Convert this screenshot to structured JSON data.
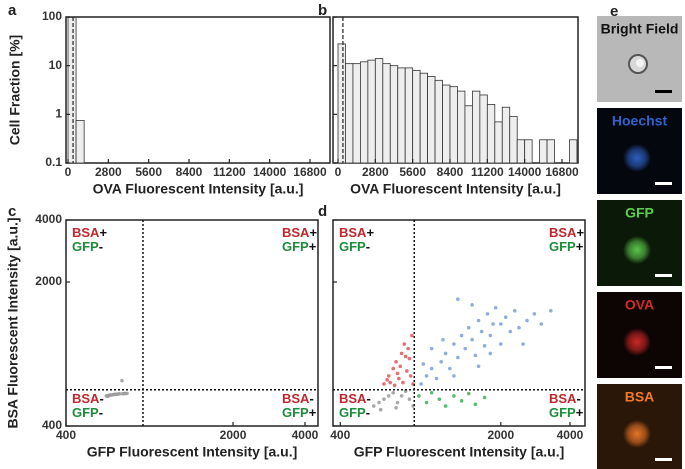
{
  "chart_data": [
    {
      "panel": "a",
      "type": "histogram",
      "xlabel": "OVA Fluorescent Intensity [a.u.]",
      "ylabel": "Cell Fraction [%]",
      "bins": [
        0,
        560,
        1120,
        1680,
        2240,
        2800,
        3360,
        3920,
        4480,
        5040,
        5600,
        6160,
        6720,
        7280,
        7840,
        8400,
        8960,
        9520,
        10080,
        10640,
        11200,
        11760,
        12320,
        12880,
        13440,
        14000,
        14560,
        15120,
        15680,
        16240,
        16800,
        17360,
        17920
      ],
      "values": [
        98,
        0.75,
        0,
        0,
        0,
        0,
        0,
        0,
        0,
        0,
        0,
        0,
        0,
        0,
        0,
        0,
        0,
        0,
        0,
        0,
        0,
        0,
        0,
        0,
        0,
        0,
        0,
        0,
        0,
        0,
        0,
        0
      ],
      "color": "#eeeeee",
      "threshold": 350,
      "ylog": true,
      "xlim": [
        -140,
        18190
      ],
      "xticks": [
        0,
        2800,
        5600,
        8400,
        11200,
        14000,
        16800
      ],
      "ylim": [
        0.1,
        100
      ],
      "yticks": [
        0.1,
        1,
        10,
        100
      ]
    },
    {
      "panel": "b",
      "type": "histogram",
      "xlabel": "OVA Fluorescent Intensity [a.u.]",
      "bins": [
        0,
        560,
        1120,
        1680,
        2240,
        2800,
        3360,
        3920,
        4480,
        5040,
        5600,
        6160,
        6720,
        7280,
        7840,
        8400,
        8960,
        9520,
        10080,
        10640,
        11200,
        11760,
        12320,
        12880,
        13440,
        14000,
        14560,
        15120,
        15680,
        16240,
        16800,
        17360,
        17920
      ],
      "values": [
        28,
        11,
        11,
        12,
        13,
        14,
        11,
        10,
        9,
        9,
        8,
        7,
        6,
        5,
        4,
        3.7,
        3,
        1.5,
        3,
        2.5,
        1.6,
        0.7,
        1.4,
        0.9,
        0.3,
        0.3,
        0,
        0.3,
        0.3,
        0,
        0,
        0.3
      ],
      "color": "#eeeeee",
      "threshold": 370,
      "ylog": true,
      "xlim": [
        -375,
        18000
      ],
      "xticks": [
        0,
        2800,
        5600,
        8400,
        11200,
        14000,
        16800
      ],
      "ylim": [
        0.1,
        100
      ],
      "yticks": [
        0.1,
        1,
        10,
        100
      ],
      "ytick_labels": false
    },
    {
      "panel": "c",
      "type": "scatter",
      "xlabel": "GFP Fluorescent Intensity [a.u.]",
      "ylabel": "BSA Fluorescent Intensity [a.u.]",
      "xlog": true,
      "ylog": true,
      "xlim": [
        400,
        4535
      ],
      "ylim": [
        400,
        4000
      ],
      "xticks": [
        400,
        2000,
        4000
      ],
      "yticks": [
        400,
        2000,
        4000
      ],
      "thresholds": {
        "x": 840,
        "y": 600
      },
      "markers": {
        "bsa": "BSA",
        "gfp": "GFP",
        "bsa_color": "#c0272d",
        "gfp_color": "#1d8c3c"
      },
      "quadrants": [
        {
          "corner": "top-left",
          "bsa": "+",
          "gfp": "-"
        },
        {
          "corner": "top-right",
          "bsa": "+",
          "gfp": "+"
        },
        {
          "corner": "bottom-left",
          "bsa": "-",
          "gfp": "-"
        },
        {
          "corner": "bottom-right",
          "bsa": "-",
          "gfp": "+"
        }
      ],
      "series": [
        {
          "color": "#9a9a9a",
          "x": [
            590,
            600,
            610,
            620,
            630,
            640,
            650,
            660,
            670,
            690,
            700,
            710,
            720,
            600,
            686
          ],
          "y": [
            560,
            562,
            565,
            566,
            568,
            570,
            570,
            572,
            573,
            574,
            575,
            575,
            576,
            558,
            664
          ]
        }
      ]
    },
    {
      "panel": "d",
      "type": "scatter",
      "xlabel": "GFP Fluorescent Intensity [a.u.]",
      "xlog": true,
      "ylog": true,
      "xlim": [
        372,
        4650
      ],
      "ylim": [
        400,
        4000
      ],
      "xticks": [
        400,
        2000,
        4000
      ],
      "yticks": [
        400,
        2000,
        4000
      ],
      "ytick_labels": false,
      "thresholds": {
        "x": 840,
        "y": 600
      },
      "markers": {
        "bsa": "BSA",
        "gfp": "GFP",
        "bsa_color": "#c0272d",
        "gfp_color": "#1d8c3c"
      },
      "quadrants": [
        {
          "corner": "top-left",
          "bsa": "+",
          "gfp": "-"
        },
        {
          "corner": "top-right",
          "bsa": "+",
          "gfp": "+"
        },
        {
          "corner": "bottom-left",
          "bsa": "-",
          "gfp": "-"
        },
        {
          "corner": "bottom-right",
          "bsa": "-",
          "gfp": "+"
        }
      ],
      "series": [
        {
          "color": "#9a9a9a",
          "x": [
            560,
            590,
            620,
            650,
            680,
            710,
            740,
            770,
            800,
            830,
            600,
            700
          ],
          "y": [
            500,
            520,
            540,
            560,
            580,
            520,
            560,
            590,
            540,
            500,
            480,
            490
          ]
        },
        {
          "color": "#e0575c",
          "x": [
            620,
            650,
            680,
            700,
            720,
            740,
            760,
            780,
            800,
            820,
            660,
            690,
            710,
            730,
            750,
            770,
            790,
            810,
            830,
            640
          ],
          "y": [
            640,
            700,
            760,
            820,
            680,
            900,
            1000,
            740,
            850,
            1100,
            650,
            630,
            720,
            780,
            650,
            870,
            950,
            700,
            640,
            670
          ]
        },
        {
          "color": "#3fae5a",
          "x": [
            880,
            950,
            1000,
            1080,
            1150,
            1250,
            1350,
            1450,
            1550,
            1700
          ],
          "y": [
            560,
            520,
            580,
            540,
            500,
            560,
            530,
            575,
            510,
            550
          ]
        },
        {
          "color": "#7d9fd6",
          "x": [
            900,
            950,
            1000,
            1050,
            1100,
            1150,
            1200,
            1250,
            1300,
            1350,
            1400,
            1450,
            1500,
            1550,
            1600,
            1650,
            1700,
            1750,
            1800,
            1850,
            1900,
            2000,
            2100,
            2200,
            2300,
            2400,
            2600,
            2800,
            3000,
            3300,
            1300,
            1500,
            920,
            1000,
            1120,
            1250,
            1600,
            1800,
            2000,
            2500
          ],
          "y": [
            640,
            700,
            760,
            680,
            820,
            900,
            760,
            1000,
            860,
            1100,
            950,
            1200,
            1050,
            880,
            1300,
            1150,
            980,
            1400,
            1100,
            1250,
            1500,
            1000,
            1350,
            1150,
            1450,
            1200,
            1300,
            1400,
            1250,
            1450,
            1650,
            1550,
            800,
            950,
            1050,
            700,
            780,
            900,
            1250,
            1000
          ]
        }
      ]
    }
  ],
  "panel_e": {
    "panel": "e",
    "images": [
      {
        "label": "Bright Field",
        "color": "#111111",
        "background": "#b8b8b8"
      },
      {
        "label": "Hoechst",
        "color": "#2f63c8",
        "background": "#05070f"
      },
      {
        "label": "GFP",
        "color": "#5fce4e",
        "background": "#0b1a08"
      },
      {
        "label": "OVA",
        "color": "#d62a28",
        "background": "#0d0404"
      },
      {
        "label": "BSA",
        "color": "#f07a2a",
        "background": "#2b1707"
      }
    ]
  }
}
